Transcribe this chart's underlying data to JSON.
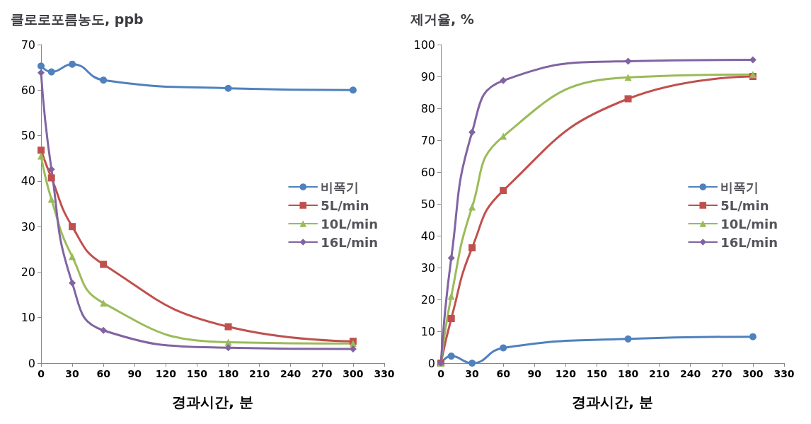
{
  "chart_data": [
    {
      "type": "line",
      "ylabel": "클로로포름농도, ppb",
      "xlabel": "경과시간, 분",
      "x": [
        0,
        10,
        30,
        60,
        180,
        300
      ],
      "xlim": [
        0,
        330
      ],
      "xticks": [
        0,
        30,
        60,
        90,
        120,
        150,
        180,
        210,
        240,
        270,
        300,
        330
      ],
      "ylim": [
        0,
        70
      ],
      "yticks": [
        0,
        10,
        20,
        30,
        40,
        50,
        60,
        70
      ],
      "grid": false,
      "legend": "right",
      "series": [
        {
          "name": "비폭기",
          "color": "#4f81bd",
          "marker": "circle",
          "values": [
            65.3,
            64,
            65.7,
            62.2,
            60.4,
            60
          ]
        },
        {
          "name": "5L/min",
          "color": "#c0504d",
          "marker": "square",
          "values": [
            46.8,
            40.7,
            30,
            21.7,
            8,
            4.8
          ]
        },
        {
          "name": "10L/min",
          "color": "#9bbb59",
          "marker": "triangle",
          "values": [
            45.5,
            36,
            23.4,
            13.2,
            4.6,
            4.3
          ]
        },
        {
          "name": "16L/min",
          "color": "#8064a2",
          "marker": "diamond",
          "values": [
            63.8,
            42.6,
            17.6,
            7.2,
            3.4,
            3.1
          ]
        }
      ]
    },
    {
      "type": "line",
      "ylabel": "제거율, %",
      "xlabel": "경과시간, 분",
      "x": [
        0,
        10,
        30,
        60,
        180,
        300
      ],
      "xlim": [
        0,
        330
      ],
      "xticks": [
        0,
        30,
        60,
        90,
        120,
        150,
        180,
        210,
        240,
        270,
        300,
        330
      ],
      "ylim": [
        0,
        100
      ],
      "yticks": [
        0,
        10,
        20,
        30,
        40,
        50,
        60,
        70,
        80,
        90,
        100
      ],
      "grid": false,
      "legend": "right",
      "series": [
        {
          "name": "비폭기",
          "color": "#4f81bd",
          "marker": "circle",
          "values": [
            0,
            2.2,
            0,
            4.8,
            7.6,
            8.3
          ]
        },
        {
          "name": "5L/min",
          "color": "#c0504d",
          "marker": "square",
          "values": [
            0,
            14,
            36.2,
            54.2,
            83,
            90
          ]
        },
        {
          "name": "10L/min",
          "color": "#9bbb59",
          "marker": "triangle",
          "values": [
            0,
            21,
            49,
            71.2,
            89.7,
            90.6
          ]
        },
        {
          "name": "16L/min",
          "color": "#8064a2",
          "marker": "diamond",
          "values": [
            0,
            33,
            72.5,
            88.7,
            94.8,
            95.2
          ]
        }
      ]
    }
  ]
}
